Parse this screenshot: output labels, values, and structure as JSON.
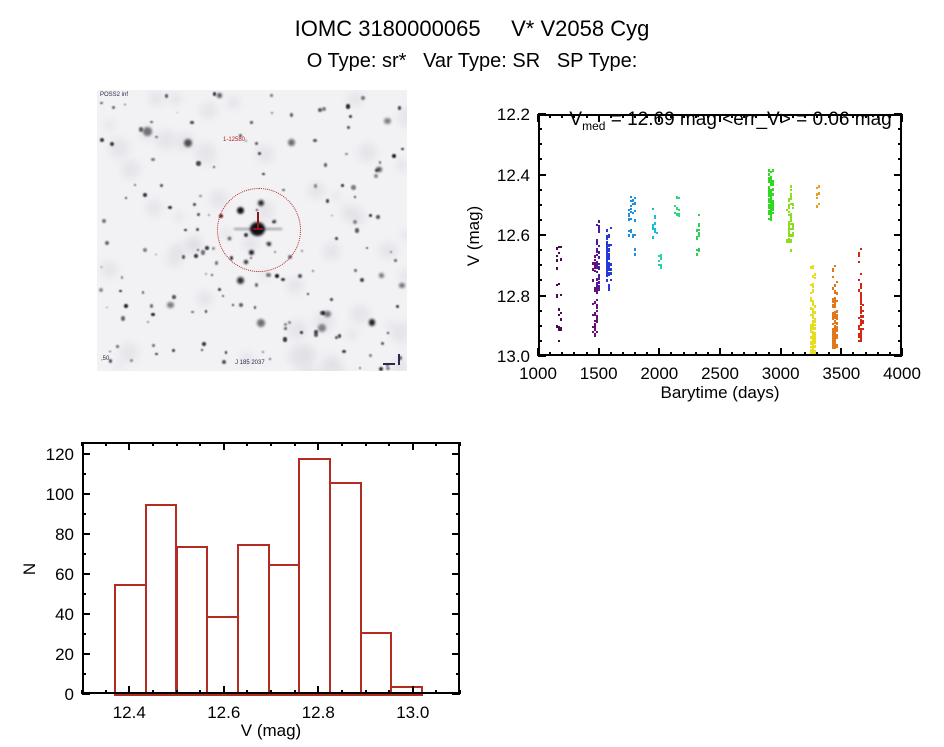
{
  "header": {
    "title": "IOMC 3180000065     V* V2058 Cyg",
    "subtitle": "O Type: sr*   Var Type: SR   SP Type:"
  },
  "finder": {
    "survey_label": "POSS2 inf",
    "target_label": "1-12580",
    "coord_label": "J 185 2037",
    "corner_label": ",50",
    "marker_color": "#b42222"
  },
  "chart_data": [
    {
      "type": "scatter",
      "title_v": "V",
      "title_sub": "med",
      "title_rest": " = 12.69 mag <err_V> = 0.06 mag",
      "xlabel": "Barytime (days)",
      "ylabel": "V (mag)",
      "xlim": [
        1000,
        4000
      ],
      "ylim": [
        12.2,
        13.0
      ],
      "y_inverted": true,
      "grid": false,
      "xticks": [
        {
          "v": 1000,
          "t": "1000"
        },
        {
          "v": 1500,
          "t": "1500"
        },
        {
          "v": 2000,
          "t": "2000"
        },
        {
          "v": 2500,
          "t": "2500"
        },
        {
          "v": 3000,
          "t": "3000"
        },
        {
          "v": 3500,
          "t": "3500"
        },
        {
          "v": 4000,
          "t": "4000"
        }
      ],
      "yticks": [
        {
          "v": 12.2,
          "t": "12.2"
        },
        {
          "v": 12.4,
          "t": "12.4"
        },
        {
          "v": 12.6,
          "t": "12.6"
        },
        {
          "v": 12.8,
          "t": "12.8"
        },
        {
          "v": 13.0,
          "t": "13.0"
        }
      ],
      "minor_x": 100,
      "minor_y": 0.05,
      "clusters": [
        {
          "x": 1165,
          "xs": 22,
          "vmin": 12.63,
          "vmax": 12.96,
          "n": 26,
          "color": "#4a0a52",
          "bias": "uniform"
        },
        {
          "x": 1468,
          "xs": 18,
          "vmin": 12.66,
          "vmax": 12.93,
          "n": 48,
          "color": "#6b0d74",
          "bias": "uniform"
        },
        {
          "x": 1490,
          "xs": 14,
          "vmin": 12.54,
          "vmax": 12.78,
          "n": 40,
          "color": "#50189c",
          "bias": "uniform"
        },
        {
          "x": 1578,
          "xs": 16,
          "vmin": 12.56,
          "vmax": 12.81,
          "n": 65,
          "color": "#2838d4",
          "bias": "center"
        },
        {
          "x": 1768,
          "xs": 35,
          "vmin": 12.47,
          "vmax": 12.61,
          "n": 26,
          "color": "#1e8fe0",
          "bias": "uniform"
        },
        {
          "x": 1790,
          "xs": 4,
          "vmin": 12.64,
          "vmax": 12.66,
          "n": 2,
          "color": "#1e8fe0",
          "bias": "uniform"
        },
        {
          "x": 1958,
          "xs": 12,
          "vmin": 12.51,
          "vmax": 12.62,
          "n": 14,
          "color": "#19bddc",
          "bias": "uniform"
        },
        {
          "x": 2002,
          "xs": 12,
          "vmin": 12.66,
          "vmax": 12.73,
          "n": 10,
          "color": "#27d3a4",
          "bias": "uniform"
        },
        {
          "x": 2142,
          "xs": 16,
          "vmin": 12.47,
          "vmax": 12.56,
          "n": 12,
          "color": "#2cd977",
          "bias": "uniform"
        },
        {
          "x": 2315,
          "xs": 12,
          "vmin": 12.53,
          "vmax": 12.66,
          "n": 16,
          "color": "#2fcf57",
          "bias": "uniform"
        },
        {
          "x": 2912,
          "xs": 20,
          "vmin": 12.36,
          "vmax": 12.57,
          "n": 85,
          "color": "#30d723",
          "bias": "center"
        },
        {
          "x": 3075,
          "xs": 20,
          "vmin": 12.42,
          "vmax": 12.62,
          "n": 60,
          "color": "#8ade22",
          "bias": "bottom"
        },
        {
          "x": 3082,
          "xs": 4,
          "vmin": 12.64,
          "vmax": 12.65,
          "n": 2,
          "color": "#8ade22",
          "bias": "uniform"
        },
        {
          "x": 3305,
          "xs": 12,
          "vmin": 12.43,
          "vmax": 12.5,
          "n": 9,
          "color": "#e8a028",
          "bias": "uniform"
        },
        {
          "x": 3262,
          "xs": 16,
          "vmin": 12.69,
          "vmax": 12.99,
          "n": 110,
          "color": "#e8dc1e",
          "bias": "bottom"
        },
        {
          "x": 3442,
          "xs": 20,
          "vmin": 12.69,
          "vmax": 12.97,
          "n": 95,
          "color": "#e2761a",
          "bias": "bottom"
        },
        {
          "x": 3655,
          "xs": 14,
          "vmin": 12.63,
          "vmax": 12.95,
          "n": 70,
          "color": "#d42714",
          "bias": "bottom"
        }
      ]
    },
    {
      "type": "bar",
      "xlabel": "V (mag)",
      "ylabel": "N",
      "bin_start": 12.37,
      "bin_width": 0.065,
      "values": [
        55,
        95,
        74,
        39,
        75,
        65,
        118,
        106,
        31,
        4
      ],
      "xlim": [
        12.3,
        13.1
      ],
      "ylim": [
        0,
        126
      ],
      "grid": false,
      "xticks": [
        {
          "v": 12.4,
          "t": "12.4"
        },
        {
          "v": 12.6,
          "t": "12.6"
        },
        {
          "v": 12.8,
          "t": "12.8"
        },
        {
          "v": 13.0,
          "t": "13.0"
        }
      ],
      "yticks": [
        {
          "v": 0,
          "t": "0"
        },
        {
          "v": 20,
          "t": "20"
        },
        {
          "v": 40,
          "t": "40"
        },
        {
          "v": 60,
          "t": "60"
        },
        {
          "v": 80,
          "t": "80"
        },
        {
          "v": 100,
          "t": "100"
        },
        {
          "v": 120,
          "t": "120"
        }
      ],
      "minor_x": 0.05,
      "minor_y": 10,
      "bar_color": "#b22c24"
    }
  ]
}
